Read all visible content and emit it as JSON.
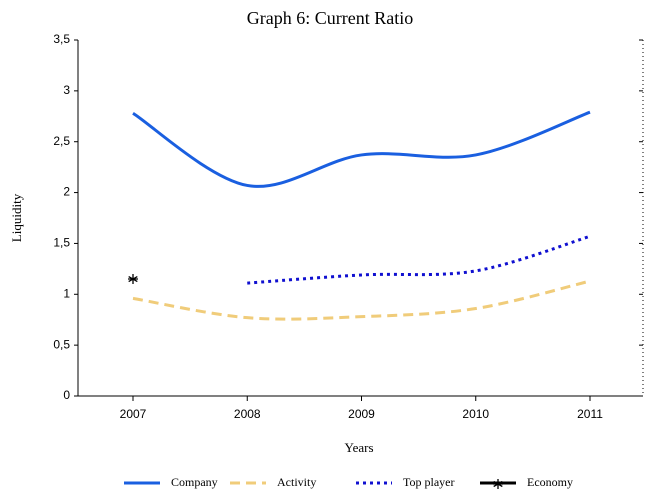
{
  "chart_data": {
    "type": "line",
    "title": "Graph 6: Current Ratio",
    "x_label": "Years",
    "y_label": "Liquidity",
    "categories": [
      "2007",
      "2008",
      "2009",
      "2010",
      "2011"
    ],
    "ylim": [
      0,
      3.5
    ],
    "yticks": [
      0,
      {
        "value": 0.5,
        "label": "0,5"
      },
      1,
      {
        "value": 1.5,
        "label": "1,5"
      },
      2,
      {
        "value": 2.5,
        "label": "2,5"
      },
      3,
      {
        "value": 3.5,
        "label": "3,5"
      }
    ],
    "smooth": true,
    "legend": "bottom",
    "series": [
      {
        "name": "Company",
        "color": "#1a5fe0",
        "style": "solid",
        "values": [
          2.78,
          2.07,
          2.37,
          2.37,
          2.79
        ]
      },
      {
        "name": "Activity",
        "color": "#f0cc7a",
        "style": "dashed",
        "values": [
          0.96,
          0.77,
          0.78,
          0.86,
          1.13
        ]
      },
      {
        "name": "Top player",
        "color": "#1010d0",
        "style": "dotted",
        "values": [
          null,
          1.11,
          1.19,
          1.23,
          1.57
        ]
      },
      {
        "name": "Economy",
        "color": "#000000",
        "style": "solid",
        "marker": "star",
        "values": [
          1.15,
          null,
          null,
          null,
          null
        ]
      }
    ]
  }
}
